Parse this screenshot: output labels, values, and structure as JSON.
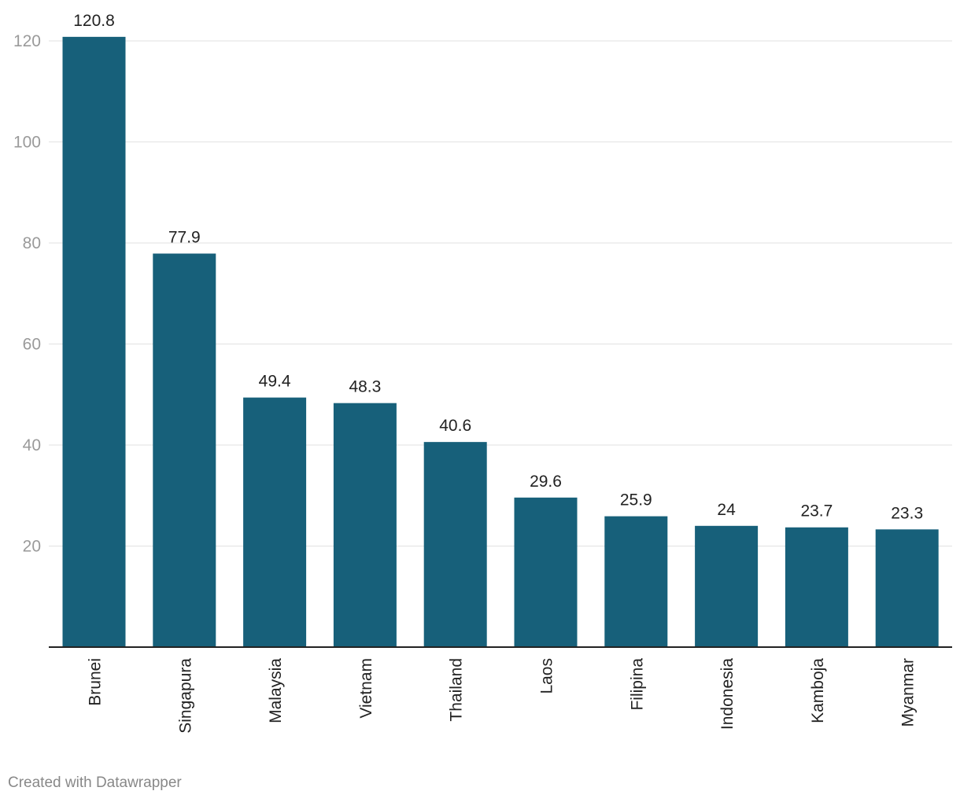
{
  "chart_data": {
    "type": "bar",
    "categories": [
      "Brunei",
      "Singapura",
      "Malaysia",
      "Vietnam",
      "Thailand",
      "Laos",
      "Filipina",
      "Indonesia",
      "Kamboja",
      "Myanmar"
    ],
    "values": [
      120.8,
      77.9,
      49.4,
      48.3,
      40.6,
      29.6,
      25.9,
      24,
      23.7,
      23.3
    ],
    "value_labels": [
      "120.8",
      "77.9",
      "49.4",
      "48.3",
      "40.6",
      "29.6",
      "25.9",
      "24",
      "23.7",
      "23.3"
    ],
    "yticks": [
      20,
      40,
      60,
      80,
      100,
      120
    ],
    "ylim": [
      0,
      120
    ],
    "grid": true,
    "bar_color": "#17607a",
    "xlabel_orientation": "vertical"
  },
  "footer": {
    "credit": "Created with Datawrapper"
  }
}
